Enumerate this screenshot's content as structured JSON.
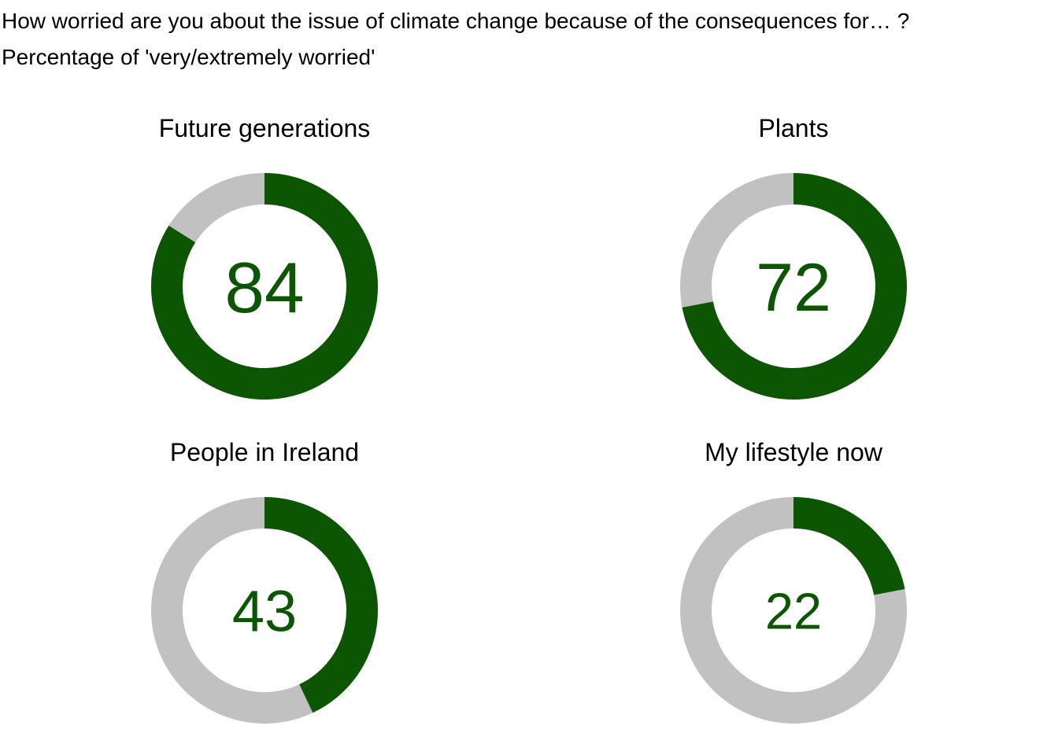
{
  "chart_data": {
    "type": "donut",
    "title": "How worried are you about the issue of climate change because of the consequences for… ?",
    "subtitle": "Percentage of 'very/extremely worried'",
    "max": 100,
    "colors": {
      "filled": "#0b5503",
      "remainder": "#c1c1c1",
      "value_text": "#0b5503"
    },
    "panels": [
      {
        "label": "Future generations",
        "value": 84
      },
      {
        "label": "Plants",
        "value": 72
      },
      {
        "label": "People in Ireland",
        "value": 43
      },
      {
        "label": "My lifestyle now",
        "value": 22
      }
    ]
  }
}
